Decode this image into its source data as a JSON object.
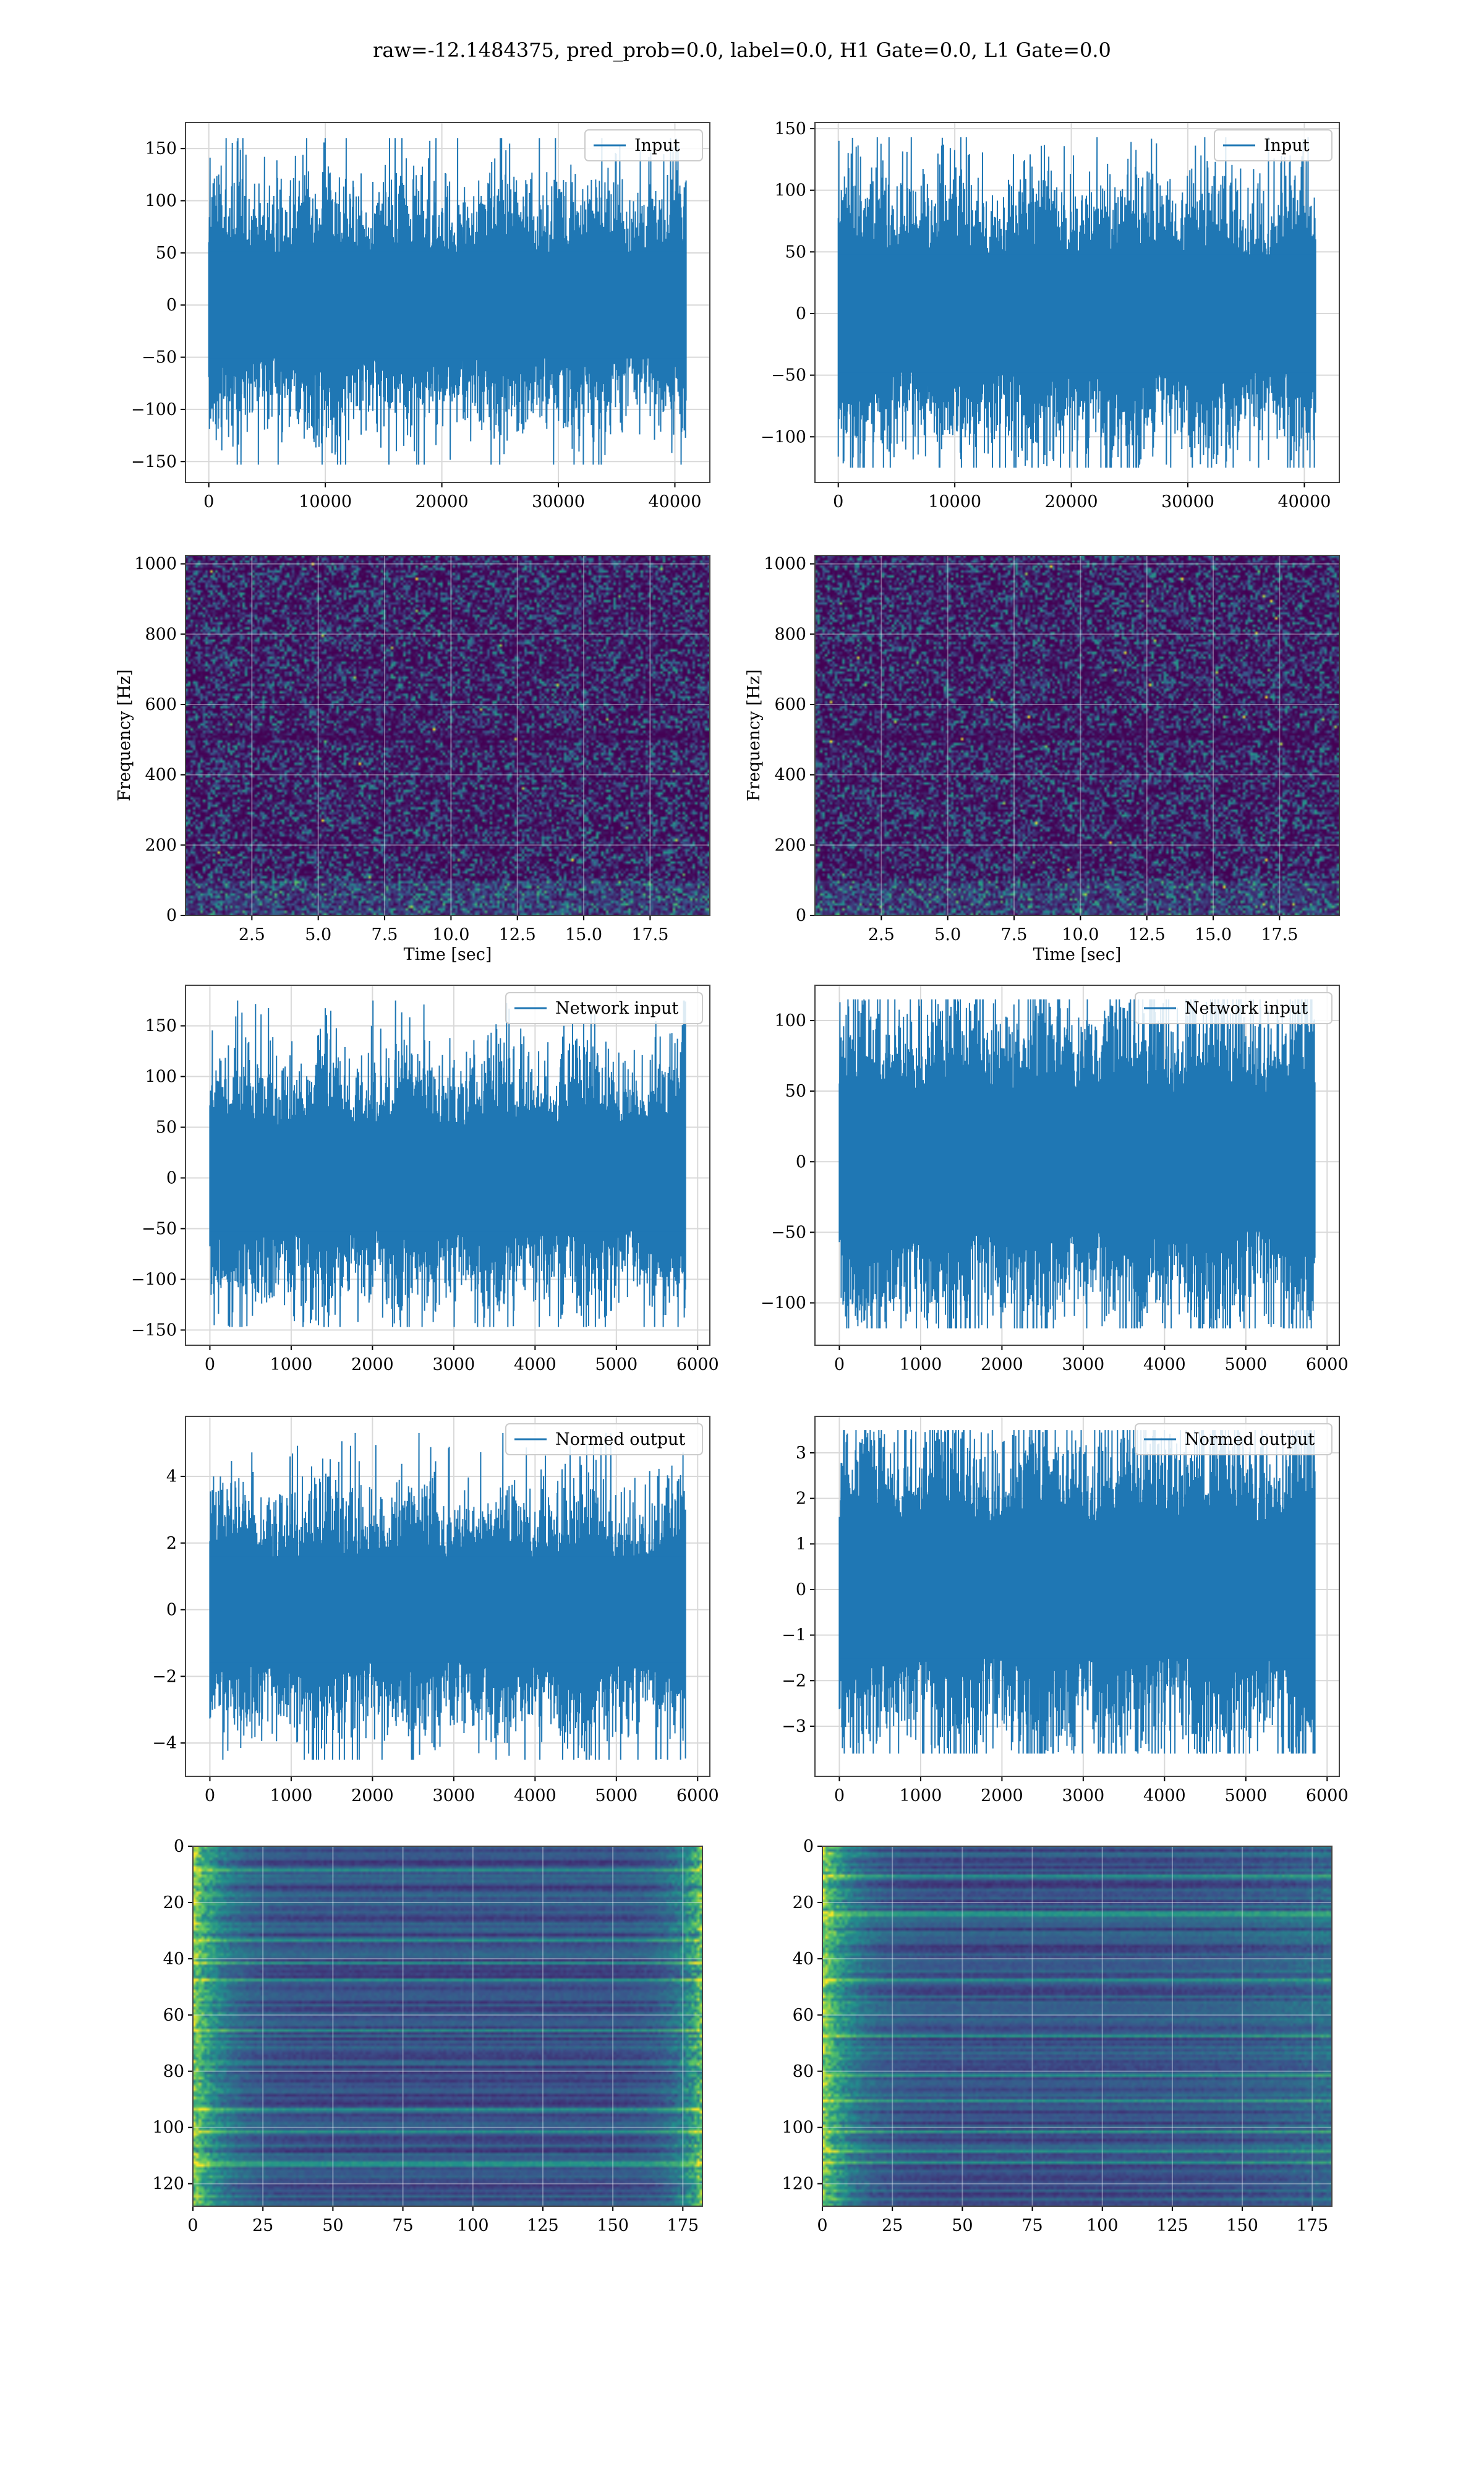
{
  "figure": {
    "suptitle": "raw=-12.1484375, pred_prob=0.0, label=0.0, H1 Gate=0.0, L1 Gate=0.0"
  },
  "colors": {
    "line": "#1f77b4",
    "grid": "#d9d9d9",
    "spine": "#444444",
    "viridis_low": "#440154",
    "viridis_mid": "#21918c",
    "viridis_high": "#fde725"
  },
  "chart_data": [
    {
      "id": "input-h1",
      "type": "line",
      "series": [
        {
          "name": "Input",
          "n_samples": 40960,
          "amplitude_std": 32,
          "min": -153,
          "max": 160
        }
      ],
      "xlim": [
        -2000,
        43000
      ],
      "ylim": [
        -170,
        175
      ],
      "xticks": [
        0,
        10000,
        20000,
        30000,
        40000
      ],
      "yticks": [
        -150,
        -100,
        -50,
        0,
        50,
        100,
        150
      ],
      "xlabel": "",
      "ylabel": "",
      "legend": "upper right",
      "grid": true
    },
    {
      "id": "input-l1",
      "type": "line",
      "series": [
        {
          "name": "Input",
          "n_samples": 40960,
          "amplitude_std": 30,
          "min": -125,
          "max": 143
        }
      ],
      "xlim": [
        -2000,
        43000
      ],
      "ylim": [
        -137,
        155
      ],
      "xticks": [
        0,
        10000,
        20000,
        30000,
        40000
      ],
      "yticks": [
        -100,
        -50,
        0,
        50,
        100,
        150
      ],
      "xlabel": "",
      "ylabel": "",
      "legend": "upper right",
      "grid": true
    },
    {
      "id": "spec-h1",
      "type": "heatmap",
      "xlim": [
        0,
        19.75
      ],
      "ylim": [
        0,
        1024
      ],
      "xticks": [
        2.5,
        5.0,
        7.5,
        10.0,
        12.5,
        15.0,
        17.5
      ],
      "yticks": [
        0,
        200,
        400,
        600,
        800,
        1000
      ],
      "xlabel": "Time [sec]",
      "ylabel": "Frequency [Hz]",
      "colormap": "viridis",
      "grid": true
    },
    {
      "id": "spec-l1",
      "type": "heatmap",
      "xlim": [
        0,
        19.75
      ],
      "ylim": [
        0,
        1024
      ],
      "xticks": [
        2.5,
        5.0,
        7.5,
        10.0,
        12.5,
        15.0,
        17.5
      ],
      "yticks": [
        0,
        200,
        400,
        600,
        800,
        1000
      ],
      "xlabel": "Time [sec]",
      "ylabel": "Frequency [Hz]",
      "colormap": "viridis",
      "grid": true
    },
    {
      "id": "netin-h1",
      "type": "line",
      "series": [
        {
          "name": "Network input",
          "n_samples": 5850,
          "amplitude_std": 33,
          "min": -147,
          "max": 175
        }
      ],
      "xlim": [
        -300,
        6150
      ],
      "ylim": [
        -165,
        190
      ],
      "xticks": [
        0,
        1000,
        2000,
        3000,
        4000,
        5000,
        6000
      ],
      "yticks": [
        -150,
        -100,
        -50,
        0,
        50,
        100,
        150
      ],
      "xlabel": "",
      "ylabel": "",
      "legend": "upper right",
      "grid": true
    },
    {
      "id": "netin-l1",
      "type": "line",
      "series": [
        {
          "name": "Network input",
          "n_samples": 5850,
          "amplitude_std": 31,
          "min": -118,
          "max": 115
        }
      ],
      "xlim": [
        -300,
        6150
      ],
      "ylim": [
        -130,
        125
      ],
      "xticks": [
        0,
        1000,
        2000,
        3000,
        4000,
        5000,
        6000
      ],
      "yticks": [
        -100,
        -50,
        0,
        50,
        100
      ],
      "xlabel": "",
      "ylabel": "",
      "legend": "upper right",
      "grid": true
    },
    {
      "id": "normed-h1",
      "type": "line",
      "series": [
        {
          "name": "Normed output",
          "n_samples": 5850,
          "amplitude_std": 1.0,
          "min": -4.5,
          "max": 5.3
        }
      ],
      "xlim": [
        -300,
        6150
      ],
      "ylim": [
        -5.0,
        5.8
      ],
      "xticks": [
        0,
        1000,
        2000,
        3000,
        4000,
        5000,
        6000
      ],
      "yticks": [
        -4,
        -2,
        0,
        2,
        4
      ],
      "xlabel": "",
      "ylabel": "",
      "legend": "upper right",
      "grid": true
    },
    {
      "id": "normed-l1",
      "type": "line",
      "series": [
        {
          "name": "Normed output",
          "n_samples": 5850,
          "amplitude_std": 0.95,
          "min": -3.6,
          "max": 3.5
        }
      ],
      "xlim": [
        -300,
        6150
      ],
      "ylim": [
        -4.1,
        3.8
      ],
      "xticks": [
        0,
        1000,
        2000,
        3000,
        4000,
        5000,
        6000
      ],
      "yticks": [
        -3,
        -2,
        -1,
        0,
        1,
        2,
        3
      ],
      "xlabel": "",
      "ylabel": "",
      "legend": "upper right",
      "grid": true
    },
    {
      "id": "feat-h1",
      "type": "heatmap",
      "rows": 128,
      "cols": 183,
      "xlim": [
        0,
        182
      ],
      "ylim": [
        0,
        128
      ],
      "xticks": [
        0,
        25,
        50,
        75,
        100,
        125,
        150,
        175
      ],
      "yticks": [
        0,
        20,
        40,
        60,
        80,
        100,
        120
      ],
      "xlabel": "",
      "ylabel": "",
      "colormap": "viridis",
      "grid": true
    },
    {
      "id": "feat-l1",
      "type": "heatmap",
      "rows": 128,
      "cols": 183,
      "xlim": [
        0,
        182
      ],
      "ylim": [
        0,
        128
      ],
      "xticks": [
        0,
        25,
        50,
        75,
        100,
        125,
        150,
        175
      ],
      "yticks": [
        0,
        20,
        40,
        60,
        80,
        100,
        120
      ],
      "xlabel": "",
      "ylabel": "",
      "colormap": "viridis",
      "grid": true
    }
  ]
}
